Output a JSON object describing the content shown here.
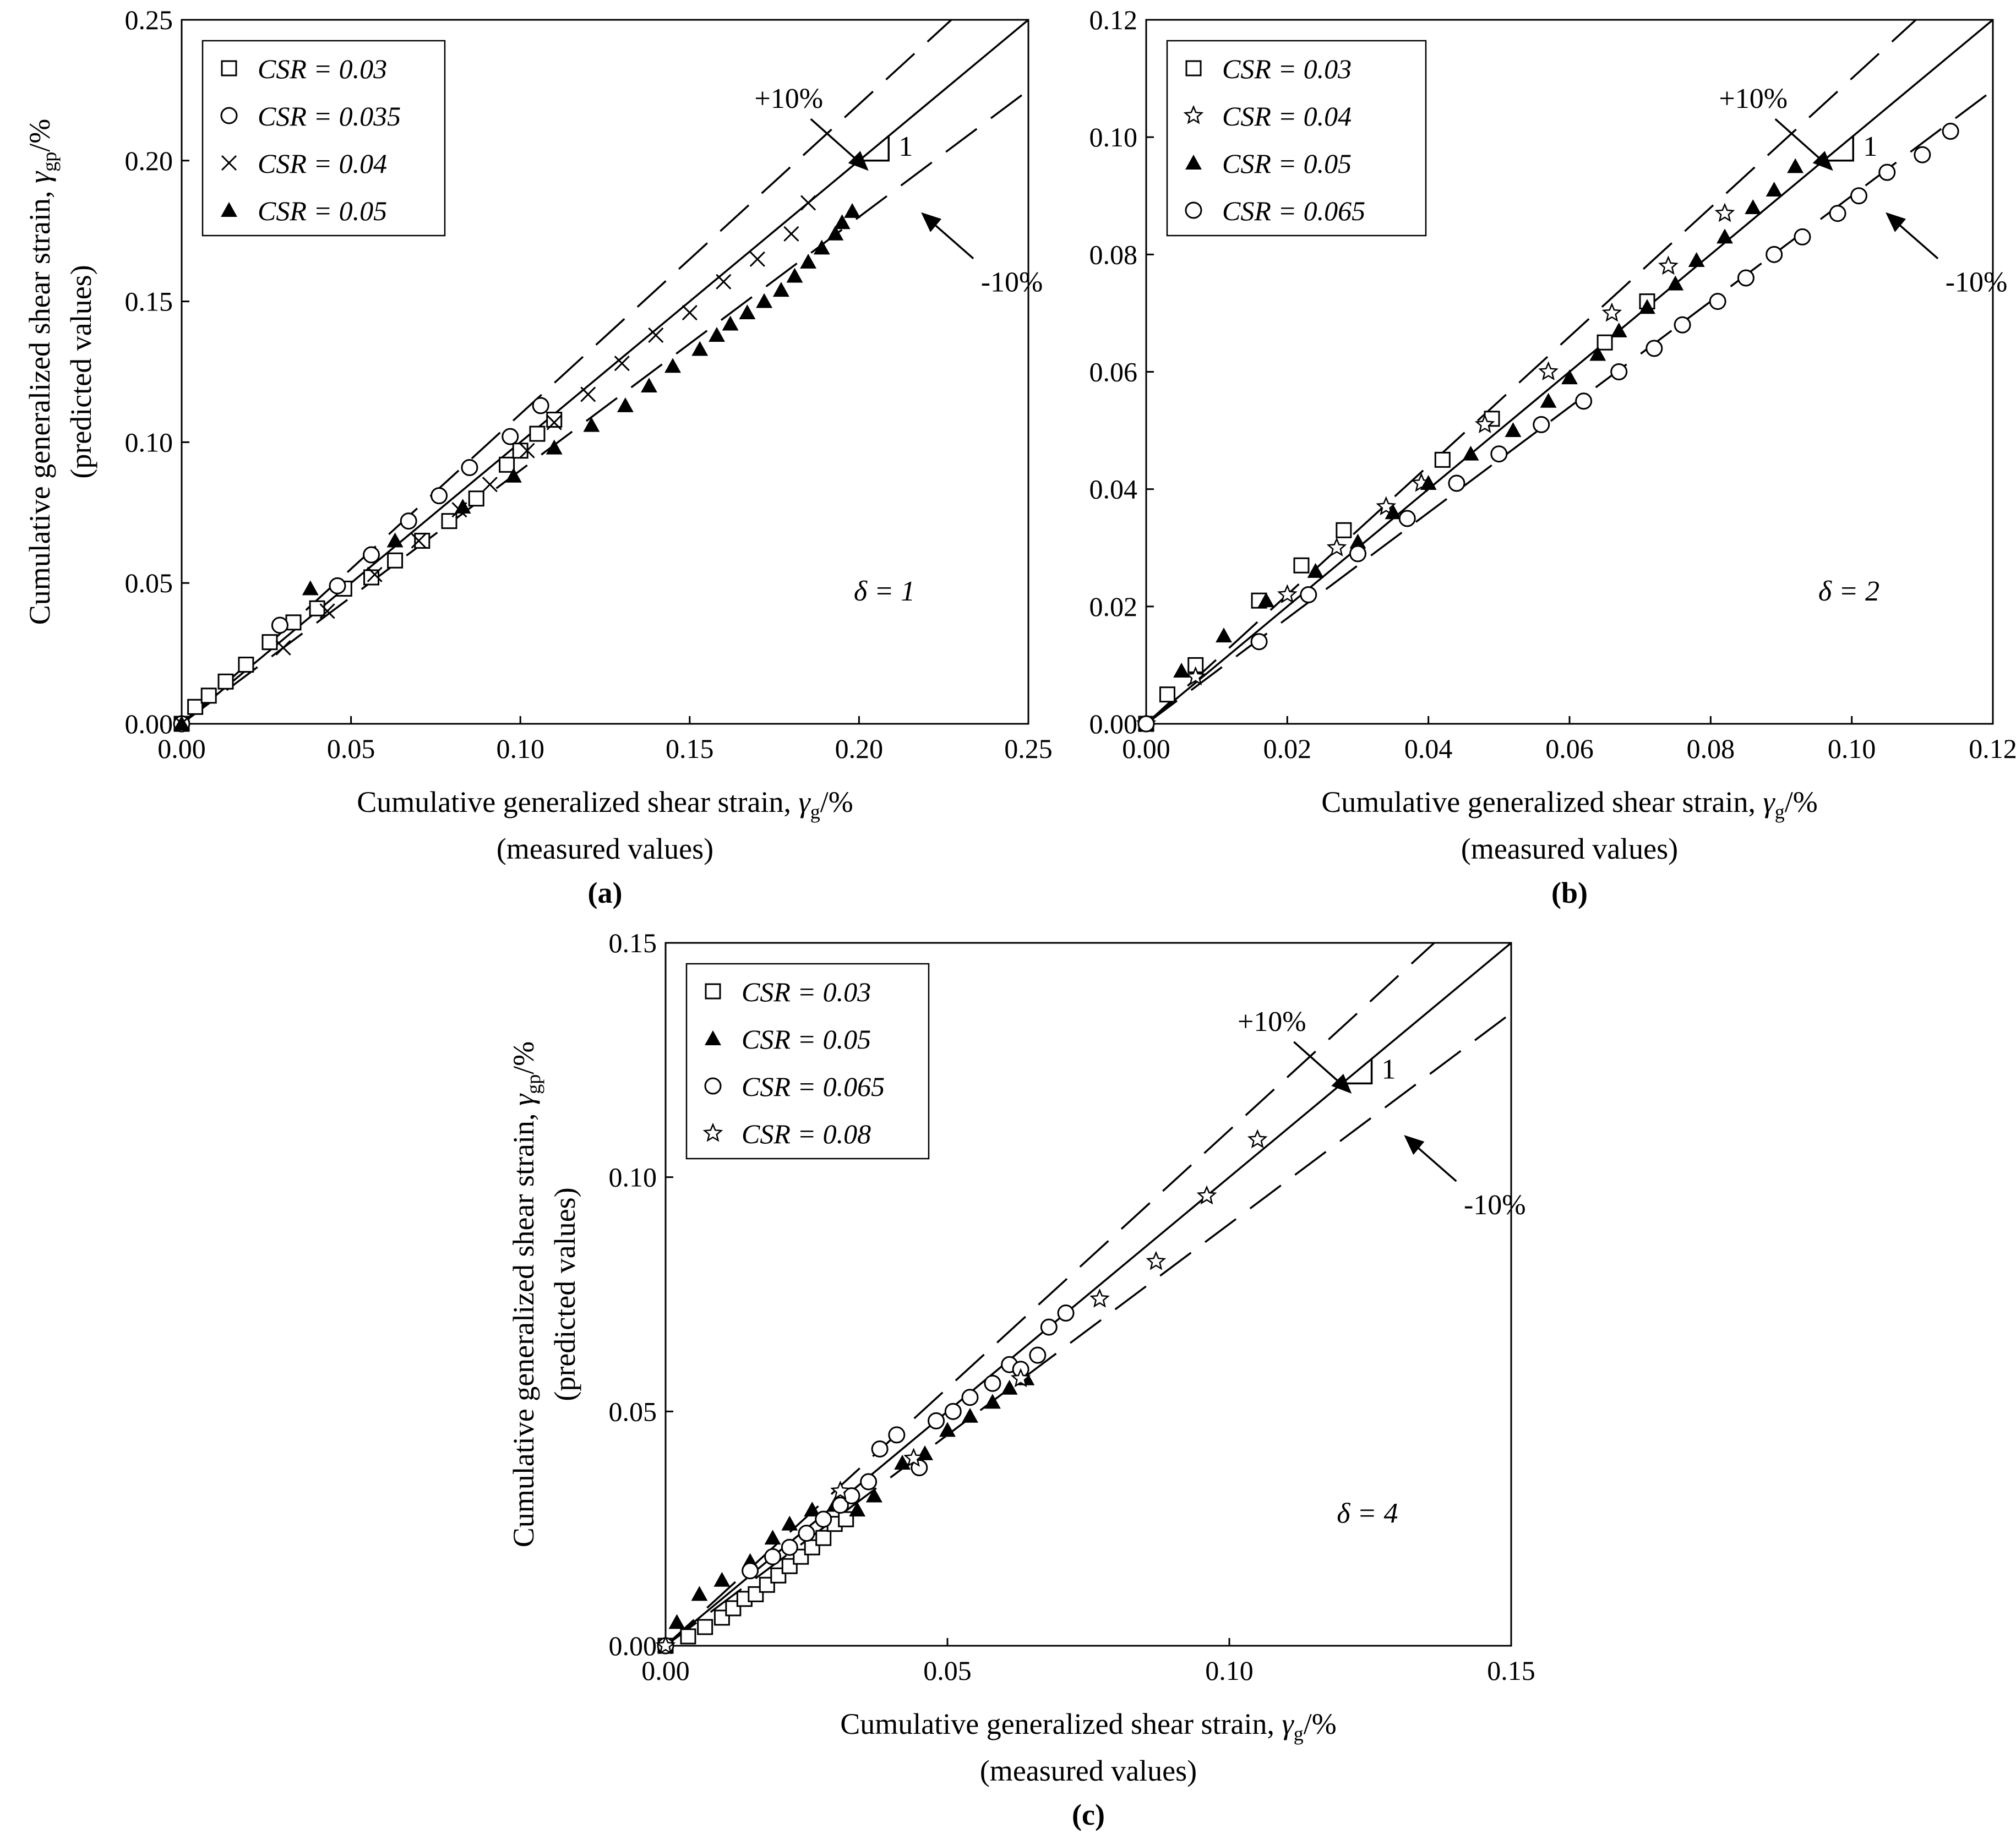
{
  "chart_data": [
    {
      "type": "scatter",
      "panel_label": "(a)",
      "xlabel_prefix": "Cumulative generalized shear strain,",
      "xlabel_symbol": "γ",
      "xlabel_subscript": "g",
      "xlabel_suffix": "/%",
      "xlabel_line2": "(measured values)",
      "ylabel_prefix": "Cumulative generalized shear strain,",
      "ylabel_symbol": "γ",
      "ylabel_subscript": "gp",
      "ylabel_suffix": "/%",
      "ylabel_line2": "(predicted values)",
      "xlim": [
        0,
        0.25
      ],
      "ylim": [
        0,
        0.25
      ],
      "xticks": [
        "0.00",
        "0.05",
        "0.10",
        "0.15",
        "0.20",
        "0.25"
      ],
      "yticks": [
        "0.00",
        "0.05",
        "0.10",
        "0.15",
        "0.20",
        "0.25"
      ],
      "grid": false,
      "legend_position": "top-left",
      "delta_label": "δ = 1",
      "slope_label": "1",
      "plus_label": "+10%",
      "minus_label": "-10%",
      "reference_line": {
        "slope": 1,
        "label": "1:1"
      },
      "bounds": {
        "plus": 1.1,
        "minus": 0.9
      },
      "series": [
        {
          "name": "CSR = 0.03",
          "marker": "square",
          "x": [
            0.0,
            0.004,
            0.008,
            0.013,
            0.019,
            0.026,
            0.033,
            0.04,
            0.048,
            0.056,
            0.063,
            0.071,
            0.079,
            0.087,
            0.096,
            0.1,
            0.105,
            0.11
          ],
          "y": [
            0.0,
            0.006,
            0.01,
            0.015,
            0.021,
            0.029,
            0.036,
            0.041,
            0.048,
            0.052,
            0.058,
            0.065,
            0.072,
            0.08,
            0.092,
            0.097,
            0.103,
            0.108
          ]
        },
        {
          "name": "CSR = 0.035",
          "marker": "circle",
          "x": [
            0.0,
            0.029,
            0.046,
            0.056,
            0.067,
            0.076,
            0.085,
            0.097,
            0.106
          ],
          "y": [
            0.0,
            0.035,
            0.049,
            0.06,
            0.072,
            0.081,
            0.091,
            0.102,
            0.113
          ]
        },
        {
          "name": "CSR = 0.04",
          "marker": "x",
          "x": [
            0.0,
            0.03,
            0.043,
            0.057,
            0.07,
            0.082,
            0.091,
            0.102,
            0.11,
            0.12,
            0.13,
            0.14,
            0.15,
            0.16,
            0.17,
            0.18,
            0.185
          ],
          "y": [
            0.0,
            0.027,
            0.04,
            0.053,
            0.065,
            0.076,
            0.085,
            0.097,
            0.107,
            0.117,
            0.128,
            0.138,
            0.146,
            0.157,
            0.165,
            0.174,
            0.185
          ]
        },
        {
          "name": "CSR = 0.05",
          "marker": "triangle",
          "x": [
            0.0,
            0.038,
            0.063,
            0.083,
            0.098,
            0.11,
            0.121,
            0.131,
            0.138,
            0.145,
            0.153,
            0.158,
            0.162,
            0.167,
            0.172,
            0.177,
            0.181,
            0.185,
            0.189,
            0.193,
            0.195,
            0.198
          ],
          "y": [
            0.0,
            0.048,
            0.065,
            0.077,
            0.088,
            0.098,
            0.106,
            0.113,
            0.12,
            0.127,
            0.133,
            0.138,
            0.142,
            0.146,
            0.15,
            0.154,
            0.159,
            0.164,
            0.169,
            0.174,
            0.178,
            0.182
          ]
        }
      ]
    },
    {
      "type": "scatter",
      "panel_label": "(b)",
      "xlabel_prefix": "Cumulative generalized shear strain,",
      "xlabel_symbol": "γ",
      "xlabel_subscript": "g",
      "xlabel_suffix": "/%",
      "xlabel_line2": "(measured values)",
      "xlim": [
        0,
        0.12
      ],
      "ylim": [
        0,
        0.12
      ],
      "xticks": [
        "0.00",
        "0.02",
        "0.04",
        "0.06",
        "0.08",
        "0.10",
        "0.12"
      ],
      "yticks": [
        "0.00",
        "0.02",
        "0.04",
        "0.06",
        "0.08",
        "0.10",
        "0.12"
      ],
      "grid": false,
      "legend_position": "top-left",
      "delta_label": "δ = 2",
      "slope_label": "1",
      "plus_label": "+10%",
      "minus_label": "-10%",
      "reference_line": {
        "slope": 1
      },
      "bounds": {
        "plus": 1.1,
        "minus": 0.9
      },
      "series": [
        {
          "name": "CSR = 0.03",
          "marker": "square",
          "x": [
            0.0,
            0.003,
            0.007,
            0.016,
            0.022,
            0.028,
            0.042,
            0.049,
            0.065,
            0.071
          ],
          "y": [
            0.0,
            0.005,
            0.01,
            0.021,
            0.027,
            0.033,
            0.045,
            0.052,
            0.065,
            0.072
          ]
        },
        {
          "name": "CSR = 0.04",
          "marker": "star",
          "x": [
            0.0,
            0.007,
            0.02,
            0.027,
            0.034,
            0.039,
            0.048,
            0.057,
            0.066,
            0.074,
            0.082
          ],
          "y": [
            0.0,
            0.008,
            0.022,
            0.03,
            0.037,
            0.041,
            0.051,
            0.06,
            0.07,
            0.078,
            0.087
          ]
        },
        {
          "name": "CSR = 0.05",
          "marker": "triangle",
          "x": [
            0.0,
            0.005,
            0.011,
            0.017,
            0.024,
            0.03,
            0.035,
            0.04,
            0.046,
            0.052,
            0.057,
            0.06,
            0.064,
            0.067,
            0.071,
            0.075,
            0.078,
            0.082,
            0.086,
            0.089,
            0.092
          ],
          "y": [
            0.0,
            0.009,
            0.015,
            0.021,
            0.026,
            0.031,
            0.036,
            0.041,
            0.046,
            0.05,
            0.055,
            0.059,
            0.063,
            0.067,
            0.071,
            0.075,
            0.079,
            0.083,
            0.088,
            0.091,
            0.095
          ]
        },
        {
          "name": "CSR = 0.065",
          "marker": "circle",
          "x": [
            0.0,
            0.016,
            0.023,
            0.03,
            0.037,
            0.044,
            0.05,
            0.056,
            0.062,
            0.067,
            0.072,
            0.076,
            0.081,
            0.085,
            0.089,
            0.093,
            0.098,
            0.101,
            0.105,
            0.11,
            0.114
          ],
          "y": [
            0.0,
            0.014,
            0.022,
            0.029,
            0.035,
            0.041,
            0.046,
            0.051,
            0.055,
            0.06,
            0.064,
            0.068,
            0.072,
            0.076,
            0.08,
            0.083,
            0.087,
            0.09,
            0.094,
            0.097,
            0.101
          ]
        }
      ]
    },
    {
      "type": "scatter",
      "panel_label": "(c)",
      "xlabel_prefix": "Cumulative generalized shear strain,",
      "xlabel_symbol": "γ",
      "xlabel_subscript": "g",
      "xlabel_suffix": "/%",
      "xlabel_line2": "(measured values)",
      "ylabel_prefix": "Cumulative generalized shear strain,",
      "ylabel_symbol": "γ",
      "ylabel_subscript": "gp",
      "ylabel_suffix": "/%",
      "ylabel_line2": "(predicted values)",
      "xlim": [
        0,
        0.15
      ],
      "ylim": [
        0,
        0.15
      ],
      "xticks": [
        "0.00",
        "0.05",
        "0.10",
        "0.15"
      ],
      "yticks": [
        "0.00",
        "0.05",
        "0.10",
        "0.15"
      ],
      "grid": false,
      "legend_position": "top-left",
      "delta_label": "δ = 4",
      "slope_label": "1",
      "plus_label": "+10%",
      "minus_label": "-10%",
      "reference_line": {
        "slope": 1
      },
      "bounds": {
        "plus": 1.1,
        "minus": 0.9
      },
      "series": [
        {
          "name": "CSR = 0.03",
          "marker": "square",
          "x": [
            0.0,
            0.004,
            0.007,
            0.01,
            0.012,
            0.014,
            0.016,
            0.018,
            0.02,
            0.022,
            0.024,
            0.026,
            0.028,
            0.03,
            0.032
          ],
          "y": [
            0.0,
            0.002,
            0.004,
            0.006,
            0.008,
            0.01,
            0.011,
            0.013,
            0.015,
            0.017,
            0.019,
            0.021,
            0.023,
            0.026,
            0.027
          ]
        },
        {
          "name": "CSR = 0.05",
          "marker": "triangle",
          "x": [
            0.0,
            0.002,
            0.006,
            0.01,
            0.015,
            0.019,
            0.022,
            0.026,
            0.03,
            0.034,
            0.037,
            0.042,
            0.046,
            0.05,
            0.054,
            0.058,
            0.061,
            0.064
          ],
          "y": [
            0.0,
            0.005,
            0.011,
            0.014,
            0.018,
            0.023,
            0.026,
            0.029,
            0.03,
            0.029,
            0.032,
            0.039,
            0.041,
            0.046,
            0.049,
            0.052,
            0.055,
            0.057
          ]
        },
        {
          "name": "CSR = 0.065",
          "marker": "circle",
          "x": [
            0.0,
            0.015,
            0.019,
            0.022,
            0.025,
            0.028,
            0.031,
            0.033,
            0.036,
            0.038,
            0.041,
            0.045,
            0.048,
            0.051,
            0.054,
            0.058,
            0.061,
            0.063,
            0.066,
            0.068,
            0.071
          ],
          "y": [
            0.0,
            0.016,
            0.019,
            0.021,
            0.024,
            0.027,
            0.03,
            0.032,
            0.035,
            0.042,
            0.045,
            0.038,
            0.048,
            0.05,
            0.053,
            0.056,
            0.06,
            0.059,
            0.062,
            0.068,
            0.071
          ]
        },
        {
          "name": "CSR = 0.08",
          "marker": "star",
          "x": [
            0.0,
            0.031,
            0.044,
            0.063,
            0.077,
            0.087,
            0.096,
            0.105
          ],
          "y": [
            0.0,
            0.033,
            0.04,
            0.057,
            0.074,
            0.082,
            0.096,
            0.108
          ]
        }
      ]
    }
  ]
}
